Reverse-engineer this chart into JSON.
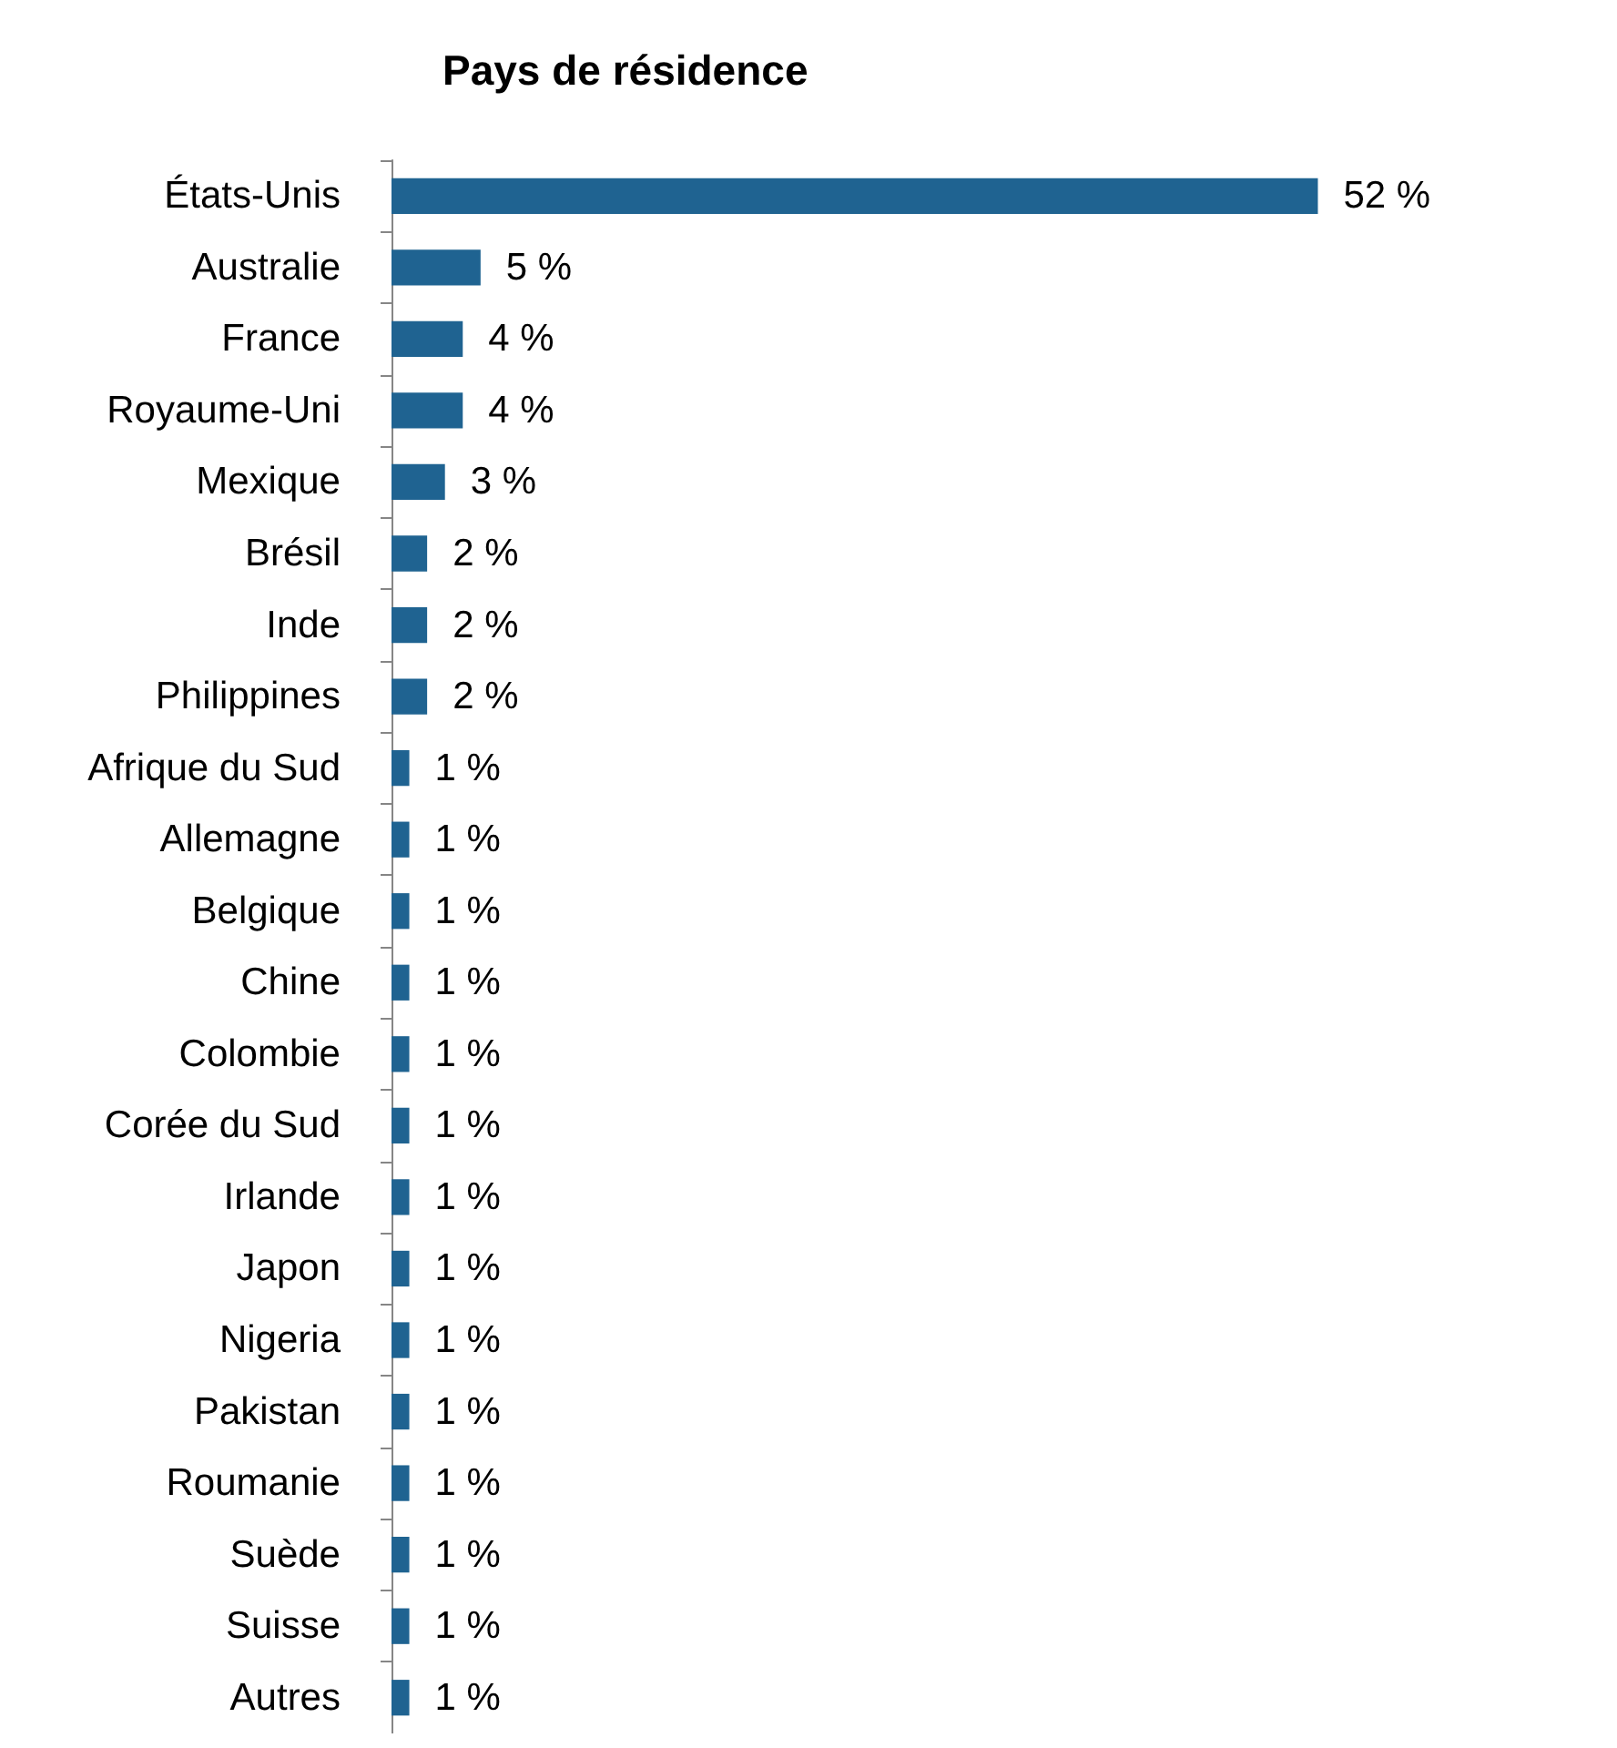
{
  "chart_data": {
    "type": "bar",
    "orientation": "horizontal",
    "title": "Pays de résidence",
    "categories": [
      "États-Unis",
      "Australie",
      "France",
      "Royaume-Uni",
      "Mexique",
      "Brésil",
      "Inde",
      "Philippines",
      "Afrique du Sud",
      "Allemagne",
      "Belgique",
      "Chine",
      "Colombie",
      "Corée du Sud",
      "Irlande",
      "Japon",
      "Nigeria",
      "Pakistan",
      "Roumanie",
      "Suède",
      "Suisse",
      "Autres"
    ],
    "values": [
      52,
      5,
      4,
      4,
      3,
      2,
      2,
      2,
      1,
      1,
      1,
      1,
      1,
      1,
      1,
      1,
      1,
      1,
      1,
      1,
      1,
      1
    ],
    "value_labels": [
      "52 %",
      "5 %",
      "4 %",
      "4 %",
      "3 %",
      "2 %",
      "2 %",
      "2 %",
      "1 %",
      "1 %",
      "1 %",
      "1 %",
      "1 %",
      "1 %",
      "1 %",
      "1 %",
      "1 %",
      "1 %",
      "1 %",
      "1 %",
      "1 %",
      "1 %"
    ],
    "color": "#1f6391",
    "tick_labels": "y"
  }
}
